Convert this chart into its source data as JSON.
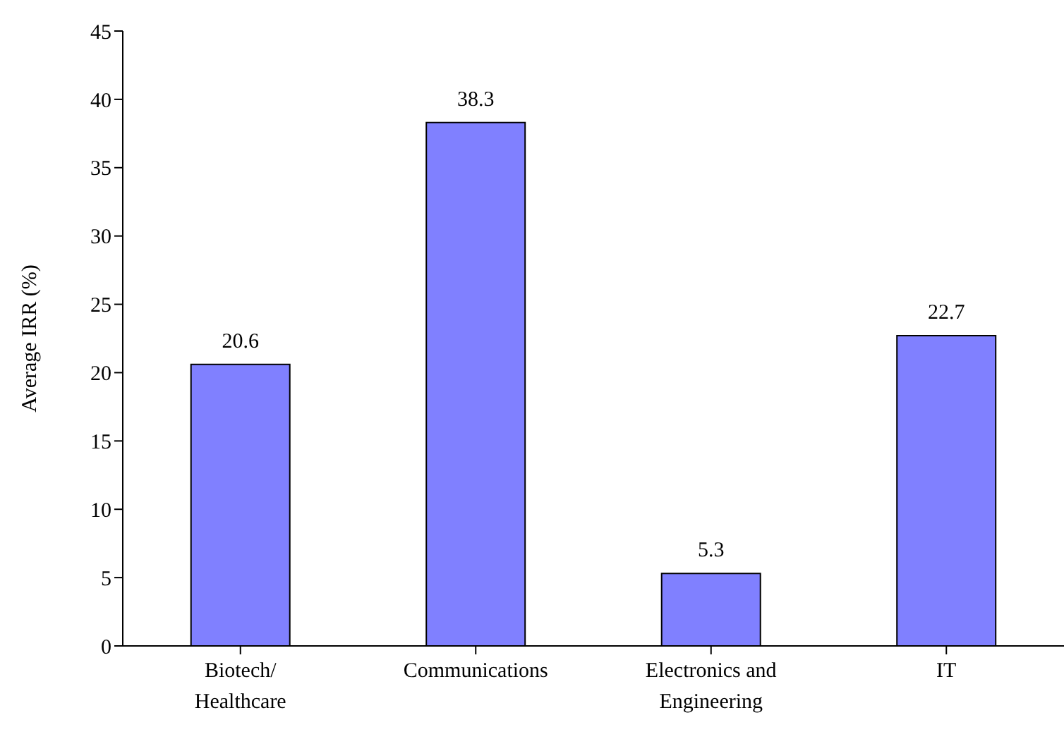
{
  "chart_data": {
    "type": "bar",
    "ylabel": "Average IRR (%)",
    "categories": [
      "Biotech/Healthcare",
      "Communications",
      "Electronics and Engineering",
      "IT"
    ],
    "values": [
      20.6,
      38.3,
      5.3,
      22.7
    ],
    "color": "#8080ff",
    "ylim": [
      0,
      45
    ],
    "yticks": [
      0,
      5,
      10,
      15,
      20,
      25,
      30,
      35,
      40,
      45
    ],
    "grid": false,
    "data_labels": true
  }
}
